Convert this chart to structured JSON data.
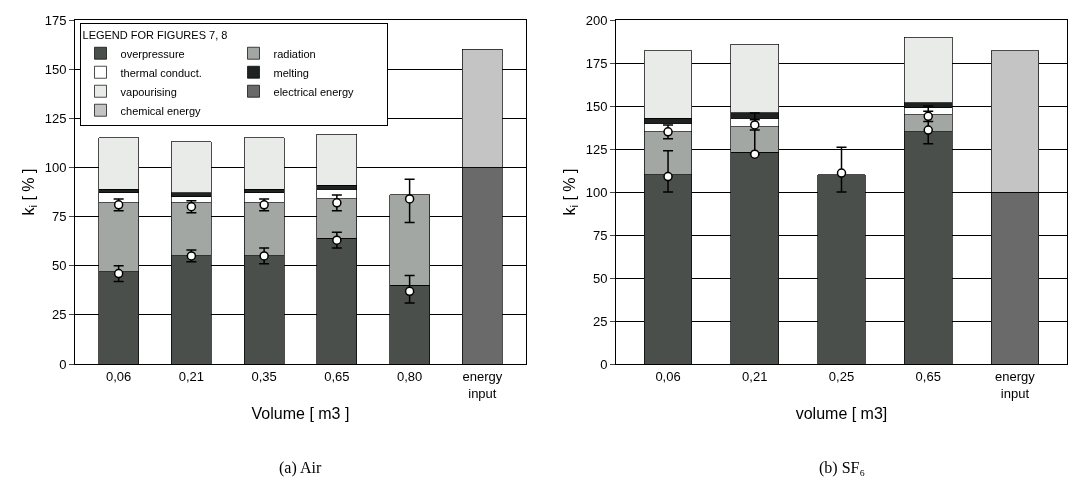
{
  "chart_data": [
    {
      "type": "bar",
      "stacked": true,
      "xlabel": "Volume [ m3 ]",
      "ylabel": "k$_{i}$ [ % ]",
      "legend_title": "LEGEND FOR FIGURES 7, 8",
      "annotations": [
        "(a) Air"
      ],
      "categories": [
        "0,06",
        "0,21",
        "0,35",
        "0,65",
        "0,80",
        "energy input"
      ],
      "ylim": [
        0,
        175
      ],
      "yticks": [
        0,
        25,
        50,
        75,
        100,
        125,
        150,
        175
      ],
      "grid": "y",
      "legend": "top left",
      "series": [
        {
          "name": "overpressure",
          "color": "#4a4f4c",
          "values": [
            47,
            55,
            55,
            64,
            40,
            null
          ]
        },
        {
          "name": "radiation",
          "color": "#a3a7a4",
          "values": [
            35,
            27,
            27,
            20,
            46,
            null
          ]
        },
        {
          "name": "thermal conduct.",
          "color": "#ffffff",
          "values": [
            5,
            3,
            5,
            5,
            null,
            null
          ]
        },
        {
          "name": "melting",
          "color": "#1e2220",
          "values": [
            2,
            2,
            2,
            2,
            null,
            null
          ]
        },
        {
          "name": "vapourising",
          "color": "#e8ebe8",
          "values": [
            26,
            26,
            26,
            26,
            null,
            null
          ]
        },
        {
          "name": "electrical energy",
          "color": "#6a6a6a",
          "values": [
            null,
            null,
            null,
            null,
            null,
            100
          ]
        },
        {
          "name": "chemical energy",
          "color": "#c4c4c4",
          "values": [
            null,
            null,
            null,
            null,
            null,
            60
          ]
        },
        {
          "type": "scatter",
          "marker": "circle",
          "color": "#ffffff",
          "x": [
            "0,06",
            "0,21",
            "0,35",
            "0,65",
            "0,80"
          ],
          "values": [
            46,
            55,
            55,
            63,
            37
          ],
          "errors": [
            [
              42,
              50
            ],
            [
              52,
              58
            ],
            [
              51,
              59
            ],
            [
              59,
              67
            ],
            [
              31,
              45
            ]
          ]
        },
        {
          "type": "scatter",
          "marker": "circle",
          "color": "#ffffff",
          "x": [
            "0,06",
            "0,21",
            "0,35",
            "0,65",
            "0,80"
          ],
          "values": [
            81,
            80,
            81,
            82,
            84
          ],
          "errors": [
            [
              78,
              84
            ],
            [
              77,
              83
            ],
            [
              78,
              84
            ],
            [
              78,
              86
            ],
            [
              72,
              94
            ]
          ]
        }
      ]
    },
    {
      "type": "bar",
      "stacked": true,
      "xlabel": "volume [ m3]",
      "ylabel": "k$_{i}$ [ % ]",
      "annotations": [
        "(b) SF₆"
      ],
      "categories": [
        "0,06",
        "0,21",
        "0,25",
        "0,65",
        "energy input"
      ],
      "ylim": [
        0,
        200
      ],
      "yticks": [
        0,
        25,
        50,
        75,
        100,
        125,
        150,
        175,
        200
      ],
      "grid": "y",
      "series": [
        {
          "color": "#4a4f4c",
          "values": [
            110,
            123,
            110,
            135,
            null
          ]
        },
        {
          "color": "#a3a7a4",
          "values": [
            25,
            15,
            null,
            10,
            null
          ]
        },
        {
          "color": "#ffffff",
          "values": [
            5,
            5,
            null,
            4,
            null
          ]
        },
        {
          "color": "#1e2220",
          "values": [
            3,
            3,
            null,
            3,
            null
          ]
        },
        {
          "color": "#e8ebe8",
          "values": [
            39,
            40,
            null,
            38,
            null
          ]
        },
        {
          "color": "#6a6a6a",
          "values": [
            null,
            null,
            null,
            null,
            100
          ]
        },
        {
          "color": "#c4c4c4",
          "values": [
            null,
            null,
            null,
            null,
            82
          ]
        },
        {
          "type": "scatter",
          "marker": "circle",
          "color": "#ffffff",
          "x": [
            "0,06",
            "0,21",
            "0,25",
            "0,65"
          ],
          "values": [
            109,
            122,
            111,
            136
          ],
          "errors": [
            [
              100,
              124
            ],
            [
              122,
              146
            ],
            [
              100,
              126
            ],
            [
              128,
              150
            ]
          ]
        },
        {
          "type": "scatter",
          "marker": "circle",
          "color": "#ffffff",
          "x": [
            "0,06",
            "0,21",
            "0,65"
          ],
          "values": [
            135,
            139,
            144
          ],
          "errors": [
            [
              131,
              139
            ],
            [
              136,
              142
            ],
            [
              141,
              147
            ]
          ]
        }
      ]
    }
  ]
}
